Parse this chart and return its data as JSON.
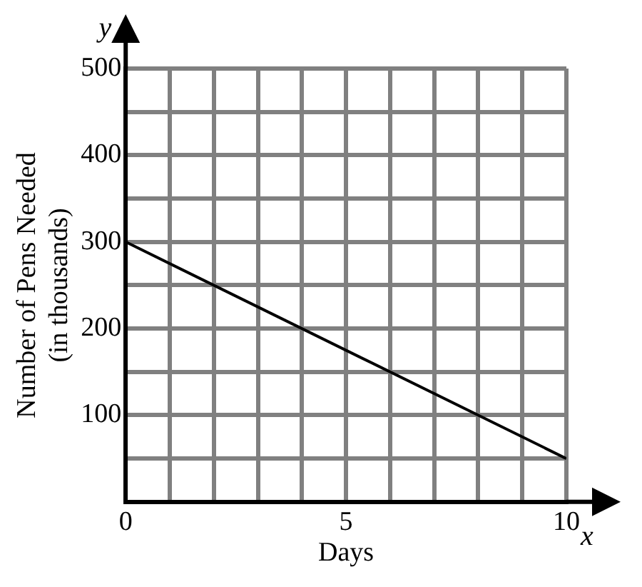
{
  "chart_data": {
    "type": "line",
    "xlabel": "Days",
    "ylabel": "Number of Pens Needed\n(in thousands)",
    "annotations": [
      "x",
      "y"
    ],
    "x": [
      0,
      10
    ],
    "series": [
      {
        "color": "#000000",
        "values": [
          300,
          50
        ]
      }
    ],
    "xlim": [
      0,
      10
    ],
    "ylim": [
      0,
      500
    ],
    "xticks": [
      0,
      {
        "value": 1,
        "label": null
      },
      {
        "value": 2,
        "label": null
      },
      {
        "value": 3,
        "label": null
      },
      {
        "value": 4,
        "label": null
      },
      5,
      {
        "value": 6,
        "label": null
      },
      {
        "value": 7,
        "label": null
      },
      {
        "value": 8,
        "label": null
      },
      {
        "value": 9,
        "label": null
      },
      10
    ],
    "yticks": [
      {
        "value": 0,
        "label": null
      },
      {
        "value": 50,
        "label": null
      },
      100,
      {
        "value": 150,
        "label": null
      },
      200,
      {
        "value": 250,
        "label": null
      },
      300,
      {
        "value": 350,
        "label": null
      },
      400,
      {
        "value": 450,
        "label": null
      },
      500
    ],
    "grid": true,
    "marker": "none",
    "line_style": "solid",
    "legend": false
  }
}
